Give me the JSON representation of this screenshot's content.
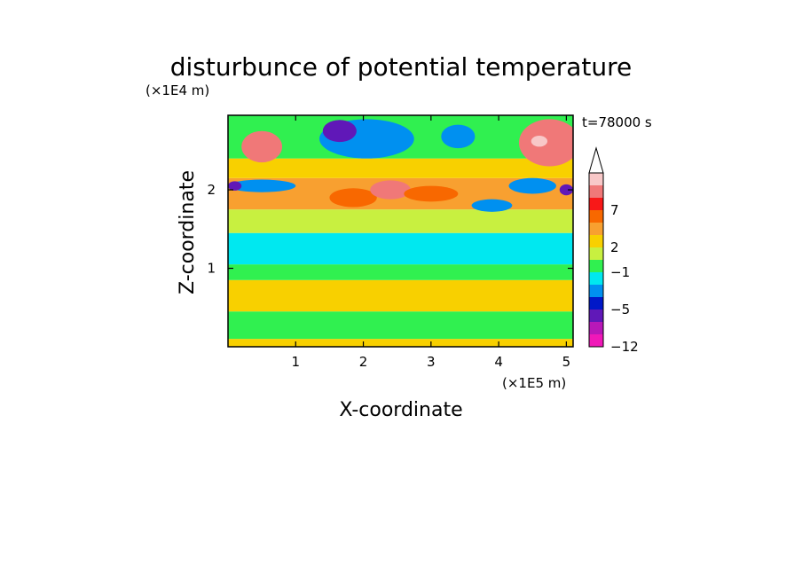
{
  "chart_data": {
    "type": "heatmap",
    "title": "disturbunce of potential temperature",
    "time_label": "t=78000 s",
    "xlabel": "X-coordinate",
    "ylabel": "Z-coordinate",
    "x_scale_label": "(×1E5 m)",
    "y_scale_label": "(×1E4 m)",
    "xlim": [
      0,
      5.1
    ],
    "ylim": [
      0,
      2.95
    ],
    "xticks": [
      "1",
      "2",
      "3",
      "4",
      "5"
    ],
    "yticks": [
      "1",
      "2"
    ],
    "colorbar": {
      "tick_labels": [
        "7",
        "2",
        "−1",
        "−5",
        "−12"
      ],
      "tick_values": [
        7,
        2,
        -1,
        -5,
        -12
      ],
      "levels": [
        {
          "name": "level-14",
          "color": "#f8c8c8"
        },
        {
          "name": "level-13",
          "color": "#f07878"
        },
        {
          "name": "level-12",
          "color": "#f81818"
        },
        {
          "name": "level-11",
          "color": "#f86800"
        },
        {
          "name": "level-10",
          "color": "#f8a030"
        },
        {
          "name": "level-9",
          "color": "#f8d000"
        },
        {
          "name": "level-8",
          "color": "#c8f040"
        },
        {
          "name": "level-7",
          "color": "#30f050"
        },
        {
          "name": "level-6",
          "color": "#00e8f0"
        },
        {
          "name": "level-5",
          "color": "#0090f0"
        },
        {
          "name": "level-4",
          "color": "#0018c8"
        },
        {
          "name": "level-3",
          "color": "#6018b8"
        },
        {
          "name": "level-2",
          "color": "#b818b8"
        },
        {
          "name": "level-1",
          "color": "#f018b8"
        }
      ],
      "extend_top": true
    },
    "field_bands": [
      {
        "z_range": [
          0.0,
          0.1
        ],
        "dominant": "#f8d000"
      },
      {
        "z_range": [
          0.1,
          0.45
        ],
        "dominant": "#30f050"
      },
      {
        "z_range": [
          0.45,
          0.85
        ],
        "dominant": "#f8d000"
      },
      {
        "z_range": [
          0.85,
          1.05
        ],
        "dominant": "#30f050"
      },
      {
        "z_range": [
          1.05,
          1.45
        ],
        "dominant": "#00e8f0"
      },
      {
        "z_range": [
          1.45,
          1.75
        ],
        "dominant": "#c8f040"
      },
      {
        "z_range": [
          1.75,
          2.15
        ],
        "dominant": "#f8a030"
      },
      {
        "z_range": [
          2.15,
          2.4
        ],
        "dominant": "#f8d000"
      },
      {
        "z_range": [
          2.4,
          2.95
        ],
        "dominant": "#30f050"
      }
    ],
    "features": [
      {
        "x": 0.5,
        "z": 2.55,
        "rx": 0.3,
        "rz": 0.2,
        "value": 7
      },
      {
        "x": 4.75,
        "z": 2.6,
        "rx": 0.45,
        "rz": 0.3,
        "value": 7
      },
      {
        "x": 4.6,
        "z": 2.62,
        "rx": 0.12,
        "rz": 0.07,
        "value": 9
      },
      {
        "x": 2.05,
        "z": 2.65,
        "rx": 0.7,
        "rz": 0.25,
        "value": -5
      },
      {
        "x": 1.65,
        "z": 2.75,
        "rx": 0.25,
        "rz": 0.14,
        "value": -7
      },
      {
        "x": 3.4,
        "z": 2.68,
        "rx": 0.25,
        "rz": 0.15,
        "value": -5
      },
      {
        "x": 0.5,
        "z": 2.05,
        "rx": 0.5,
        "rz": 0.08,
        "value": -5
      },
      {
        "x": 0.1,
        "z": 2.05,
        "rx": 0.1,
        "rz": 0.06,
        "value": -7
      },
      {
        "x": 3.9,
        "z": 1.8,
        "rx": 0.3,
        "rz": 0.08,
        "value": -5
      },
      {
        "x": 4.5,
        "z": 2.05,
        "rx": 0.35,
        "rz": 0.1,
        "value": -5
      },
      {
        "x": 5.0,
        "z": 2.0,
        "rx": 0.1,
        "rz": 0.07,
        "value": -7
      },
      {
        "x": 1.85,
        "z": 1.9,
        "rx": 0.35,
        "rz": 0.12,
        "value": 5
      },
      {
        "x": 2.4,
        "z": 2.0,
        "rx": 0.3,
        "rz": 0.12,
        "value": 7
      },
      {
        "x": 3.0,
        "z": 1.95,
        "rx": 0.4,
        "rz": 0.1,
        "value": 4
      }
    ]
  }
}
